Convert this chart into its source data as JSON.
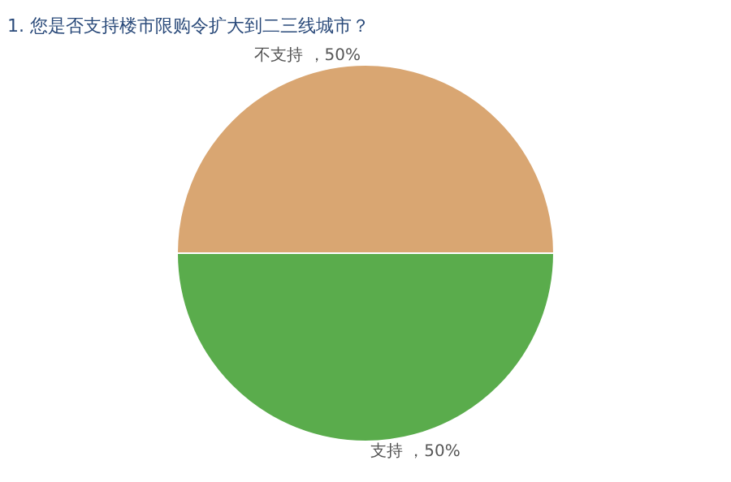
{
  "chart_data": {
    "type": "pie",
    "title": "1. 您是否支持楼市限购令扩大到二三线城市？",
    "categories": [
      "支持",
      "不支持"
    ],
    "values": [
      50,
      50
    ],
    "value_labels": [
      "，50%",
      "，50%"
    ],
    "colors": [
      "#5aac4c",
      "#d9a672"
    ],
    "legend": false
  }
}
